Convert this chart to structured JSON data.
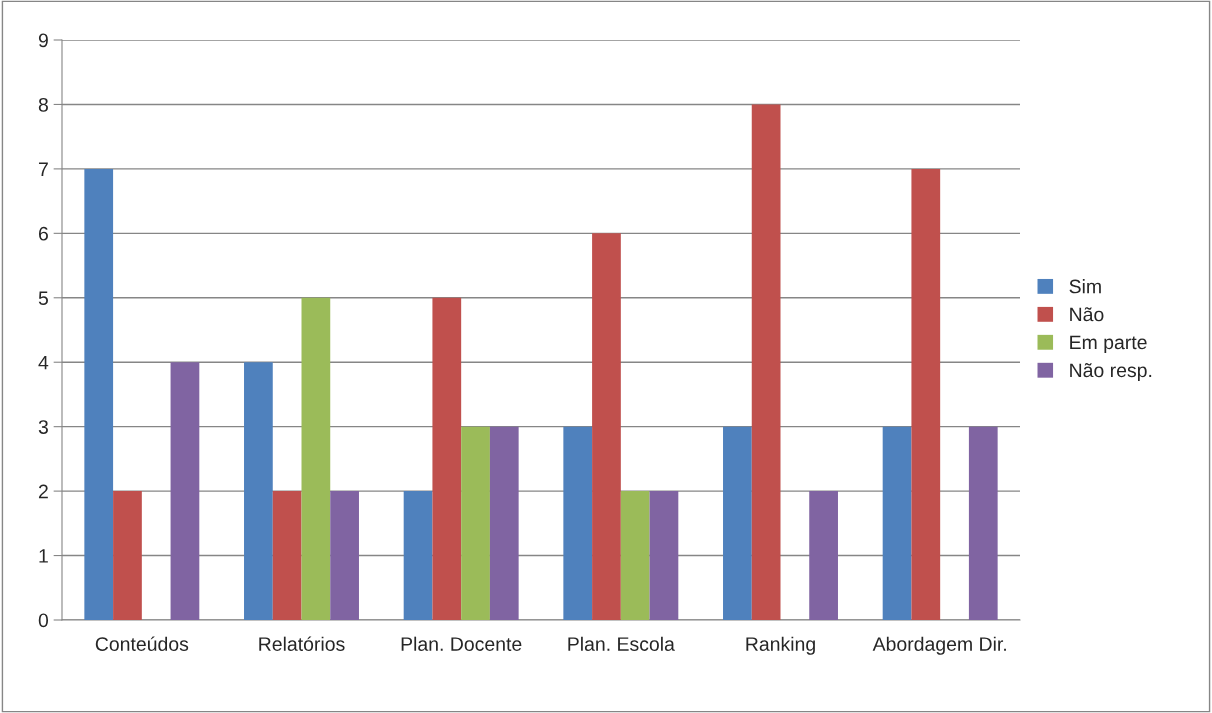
{
  "chart_data": {
    "type": "bar",
    "categories": [
      "Conteúdos",
      "Relatórios",
      "Plan. Docente",
      "Plan. Escola",
      "Ranking",
      "Abordagem Dir."
    ],
    "series": [
      {
        "name": "Sim",
        "color": "#4f81bd",
        "values": [
          7,
          4,
          2,
          3,
          3,
          3
        ]
      },
      {
        "name": "Não",
        "color": "#c0504d",
        "values": [
          2,
          2,
          5,
          6,
          8,
          7
        ]
      },
      {
        "name": "Em parte",
        "color": "#9bbb59",
        "values": [
          0,
          5,
          3,
          2,
          0,
          0
        ]
      },
      {
        "name": "Não resp.",
        "color": "#8064a2",
        "values": [
          4,
          2,
          3,
          2,
          2,
          3
        ]
      }
    ],
    "ylim": [
      0,
      9
    ],
    "yticks": [
      0,
      1,
      2,
      3,
      4,
      5,
      6,
      7,
      8,
      9
    ],
    "grid": "y",
    "legend": "right"
  }
}
